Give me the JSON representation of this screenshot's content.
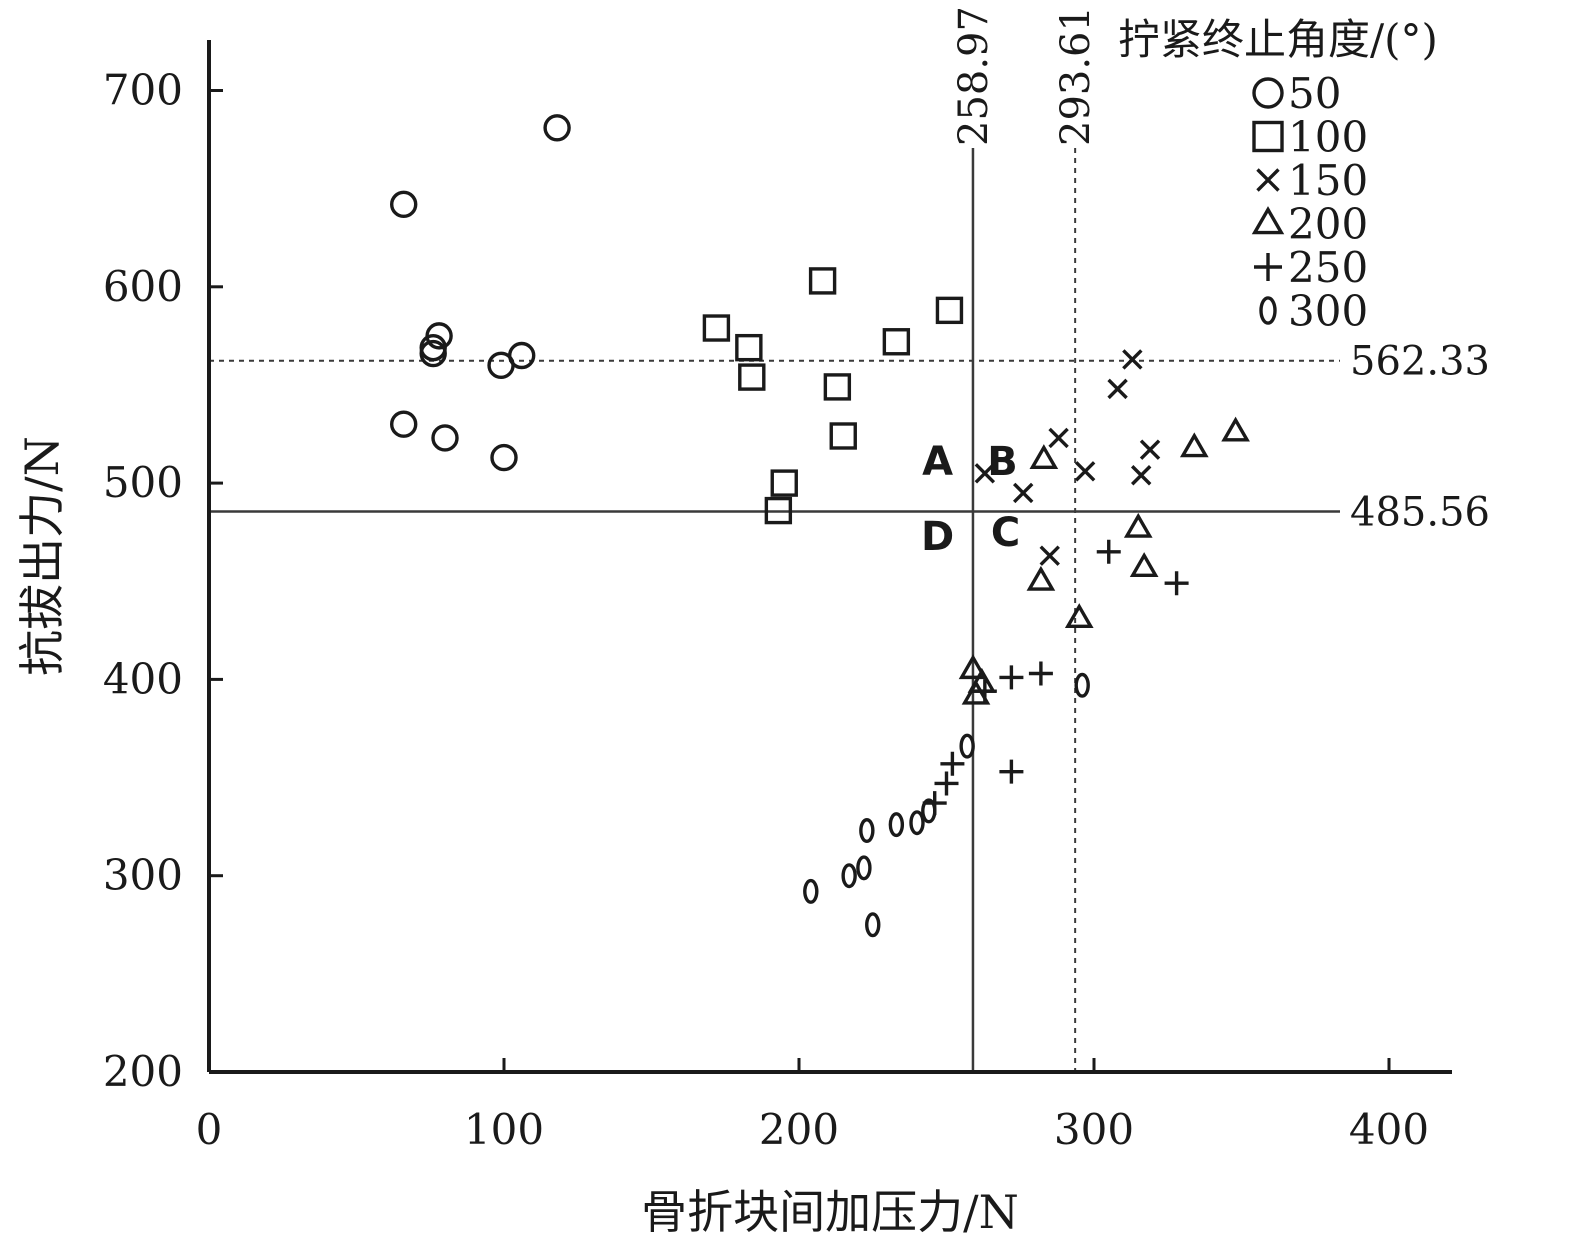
{
  "chart_data": {
    "type": "scatter",
    "title": "",
    "xlabel": "骨折块间加压力/N",
    "ylabel": "抗拔出力/N",
    "xlim": [
      0,
      420
    ],
    "ylim": [
      200,
      720
    ],
    "x_ticks": [
      "0",
      "100",
      "200",
      "300",
      "400"
    ],
    "y_ticks": [
      "200",
      "300",
      "400",
      "500",
      "600",
      "700"
    ],
    "grid": false,
    "legend": {
      "title": "拧紧终止角度/(°)",
      "placement": "top-right"
    },
    "reference_lines": [
      {
        "orientation": "vertical",
        "value": 258.97,
        "label": "258.97",
        "style": "solid"
      },
      {
        "orientation": "vertical",
        "value": 293.61,
        "label": "293.61",
        "style": "dotted"
      },
      {
        "orientation": "horizontal",
        "value": 562.33,
        "label": "562.33",
        "style": "dotted"
      },
      {
        "orientation": "horizontal",
        "value": 485.56,
        "label": "485.56",
        "style": "solid"
      }
    ],
    "regions": [
      {
        "label": "A",
        "x": 247,
        "y": 504
      },
      {
        "label": "B",
        "x": 269,
        "y": 504
      },
      {
        "label": "C",
        "x": 270,
        "y": 468
      },
      {
        "label": "D",
        "x": 247,
        "y": 466
      }
    ],
    "series": [
      {
        "name": "50",
        "marker": "circle",
        "points": [
          [
            118,
            681
          ],
          [
            66,
            642
          ],
          [
            78,
            575
          ],
          [
            76,
            569
          ],
          [
            76,
            566
          ],
          [
            106,
            565
          ],
          [
            99,
            560
          ],
          [
            66,
            530
          ],
          [
            80,
            523
          ],
          [
            100,
            513
          ]
        ]
      },
      {
        "name": "100",
        "marker": "square",
        "points": [
          [
            208,
            603
          ],
          [
            251,
            588
          ],
          [
            172,
            579
          ],
          [
            233,
            572
          ],
          [
            183,
            569
          ],
          [
            184,
            554
          ],
          [
            213,
            549
          ],
          [
            215,
            524
          ],
          [
            195,
            500
          ],
          [
            193,
            486
          ]
        ]
      },
      {
        "name": "150",
        "marker": "x",
        "points": [
          [
            313,
            563
          ],
          [
            308,
            548
          ],
          [
            288,
            523
          ],
          [
            319,
            517
          ],
          [
            297,
            506
          ],
          [
            316,
            504
          ],
          [
            263,
            505
          ],
          [
            276,
            495
          ],
          [
            285,
            463
          ]
        ]
      },
      {
        "name": "200",
        "marker": "triangle",
        "points": [
          [
            348,
            526
          ],
          [
            334,
            518
          ],
          [
            283,
            512
          ],
          [
            315,
            477
          ],
          [
            317,
            457
          ],
          [
            282,
            450
          ],
          [
            295,
            431
          ],
          [
            259,
            405
          ],
          [
            262,
            398
          ],
          [
            260,
            392
          ]
        ]
      },
      {
        "name": "250",
        "marker": "plus",
        "points": [
          [
            305,
            465
          ],
          [
            328,
            449
          ],
          [
            282,
            403
          ],
          [
            272,
            401
          ],
          [
            263,
            394
          ],
          [
            272,
            353
          ],
          [
            252,
            357
          ],
          [
            250,
            347
          ],
          [
            246,
            337
          ]
        ]
      },
      {
        "name": "300",
        "marker": "zero",
        "points": [
          [
            296,
            397
          ],
          [
            257,
            366
          ],
          [
            244,
            333
          ],
          [
            240,
            327
          ],
          [
            233,
            326
          ],
          [
            223,
            323
          ],
          [
            222,
            304
          ],
          [
            217,
            300
          ],
          [
            204,
            292
          ],
          [
            225,
            275
          ]
        ]
      }
    ]
  }
}
